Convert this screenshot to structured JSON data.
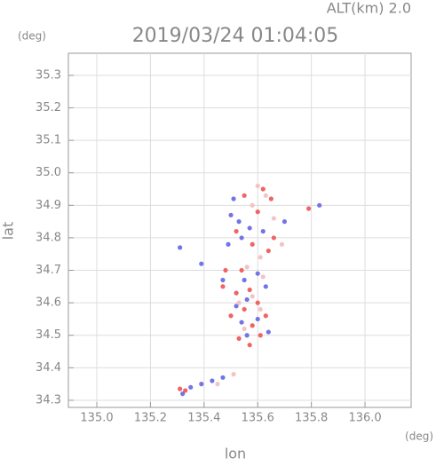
{
  "chart_data": {
    "type": "scatter",
    "title": "2019/03/24 01:04:05",
    "annotation": "ALT(km) 2.0",
    "y_unit": "(deg)",
    "x_unit": "(deg)",
    "xlabel": "lon",
    "ylabel": "lat",
    "xlim": [
      134.894,
      136.172
    ],
    "ylim": [
      34.278,
      35.368
    ],
    "xticks": [
      {
        "value": 135,
        "label": "135.0"
      },
      135.2,
      135.4,
      135.6,
      135.8,
      {
        "value": 136,
        "label": "136.0"
      }
    ],
    "yticks": [
      34.3,
      34.4,
      34.5,
      34.6,
      34.7,
      34.8,
      34.9,
      {
        "value": 35,
        "label": "35.0"
      },
      35.1,
      35.2,
      35.3
    ],
    "grid": true,
    "series": [
      {
        "color": "#f06464",
        "x": [
          135.55,
          135.62,
          135.65,
          135.6,
          135.66,
          135.58,
          135.52,
          135.79,
          135.64,
          135.47,
          135.52,
          135.57,
          135.6,
          135.55,
          135.5,
          135.58,
          135.61,
          135.57,
          135.53,
          135.63,
          135.31,
          135.33,
          135.48,
          135.54
        ],
        "y": [
          34.93,
          34.95,
          34.92,
          34.88,
          34.8,
          34.78,
          34.82,
          34.89,
          34.76,
          34.65,
          34.63,
          34.64,
          34.6,
          34.58,
          34.56,
          34.53,
          34.5,
          34.47,
          34.49,
          34.56,
          34.335,
          34.33,
          34.7,
          34.7
        ]
      },
      {
        "color": "#7474e4",
        "x": [
          135.51,
          135.5,
          135.53,
          135.57,
          135.62,
          135.7,
          135.83,
          135.54,
          135.49,
          135.31,
          135.39,
          135.47,
          135.55,
          135.6,
          135.63,
          135.56,
          135.52,
          135.6,
          135.54,
          135.64,
          135.56,
          135.35,
          135.39,
          135.43,
          135.47,
          135.32
        ],
        "y": [
          34.92,
          34.87,
          34.85,
          34.83,
          34.82,
          34.85,
          34.9,
          34.8,
          34.78,
          34.77,
          34.72,
          34.67,
          34.67,
          34.69,
          34.65,
          34.61,
          34.59,
          34.55,
          34.54,
          34.51,
          34.5,
          34.34,
          34.35,
          34.36,
          34.37,
          34.32
        ]
      },
      {
        "color": "#f2c4c4",
        "x": [
          135.6,
          135.63,
          135.58,
          135.66,
          135.69,
          135.61,
          135.56,
          135.62,
          135.58,
          135.53,
          135.61,
          135.55,
          135.45,
          135.51
        ],
        "y": [
          34.96,
          34.93,
          34.9,
          34.86,
          34.78,
          34.74,
          34.71,
          34.68,
          34.62,
          34.6,
          34.58,
          34.52,
          34.35,
          34.38
        ]
      }
    ]
  }
}
